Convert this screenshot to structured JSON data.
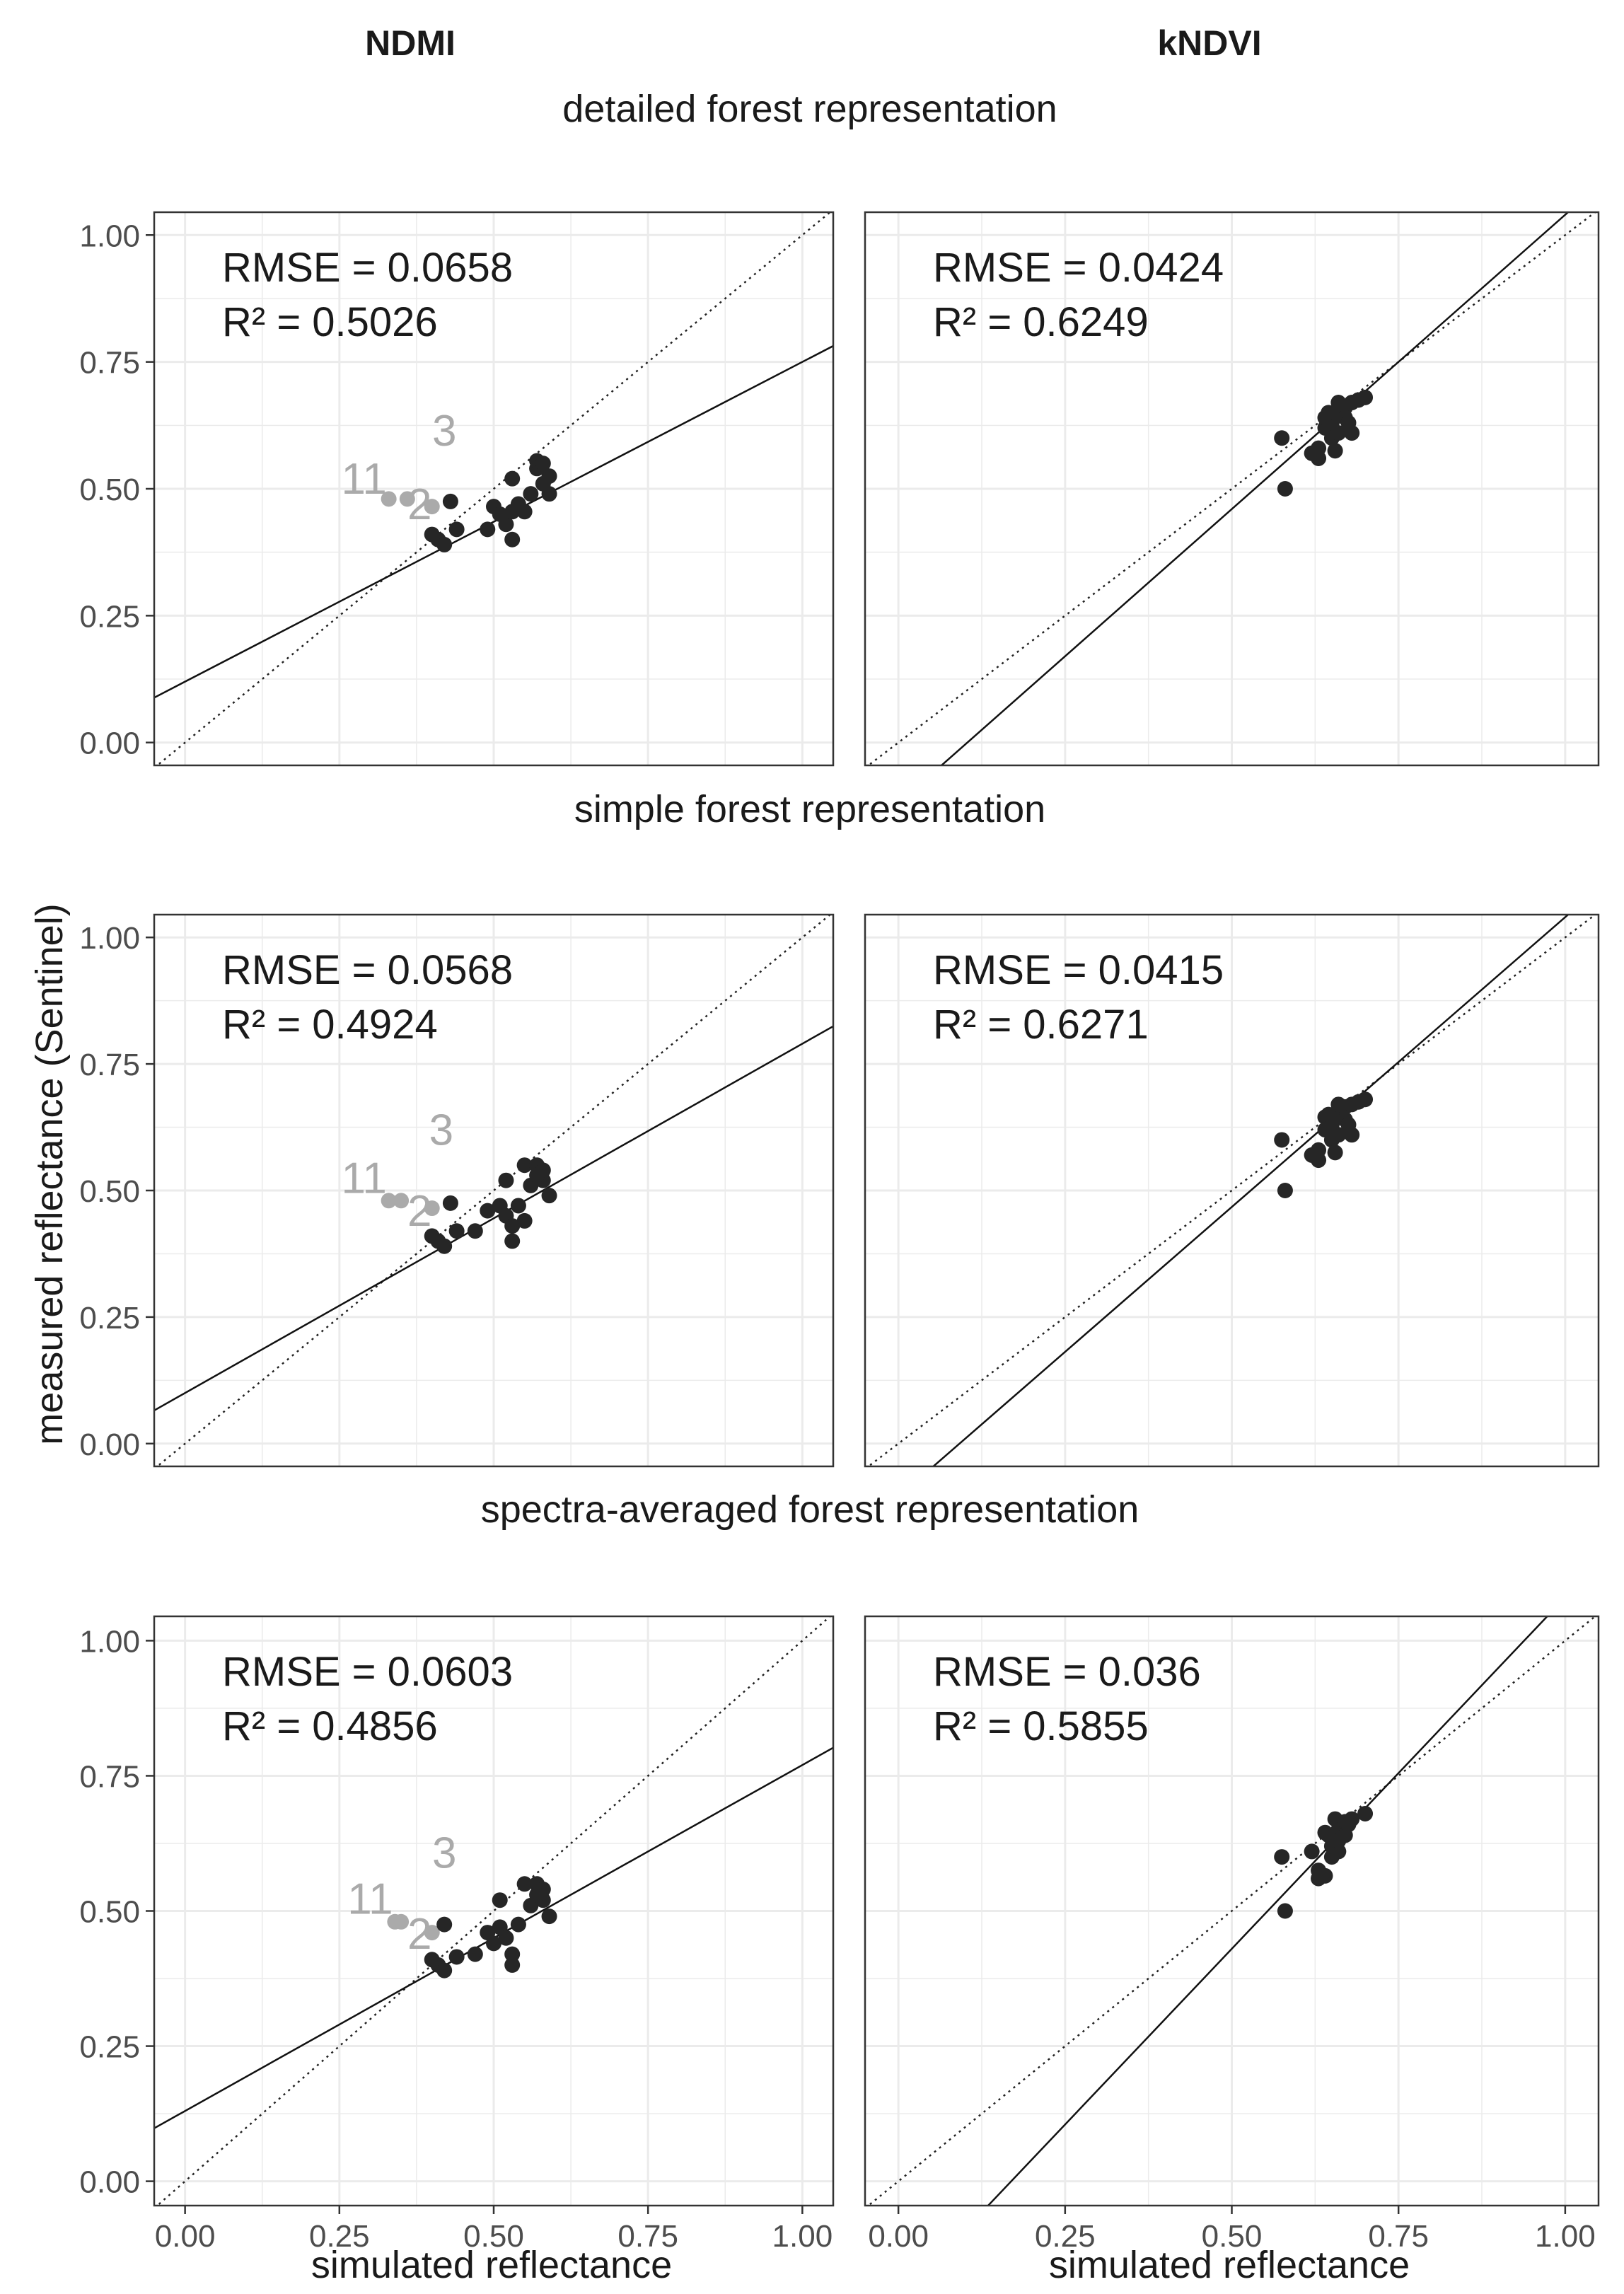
{
  "figure": {
    "column_headers": [
      "NDMI",
      "kNDVI"
    ],
    "row_titles": [
      "detailed forest representation",
      "simple forest representation",
      "spectra-averaged forest representation"
    ],
    "ylabel": "measured reflectance (Sentinel)",
    "xlabel": "simulated reflectance",
    "tick_labels": [
      "0.00",
      "0.25",
      "0.50",
      "0.75",
      "1.00"
    ],
    "colors": {
      "points": "#262626",
      "outliers": "#aaaaaa",
      "grid": "#ebebeb",
      "frame": "#333333",
      "text": "#1a1a1a",
      "tick_text": "#4d4d4d"
    }
  },
  "chart_data": [
    {
      "type": "scatter",
      "title": "NDMI — detailed forest representation",
      "xlim": [
        -0.05,
        1.05
      ],
      "ylim": [
        -0.045,
        1.045
      ],
      "stats": {
        "rmse_label": "RMSE =  0.0658",
        "r2_label": "R² =  0.5026"
      },
      "fit": {
        "intercept": 0.12,
        "slope": 0.63
      },
      "outlier_labels": [
        {
          "text": "11",
          "x": 0.29,
          "y": 0.49
        },
        {
          "text": "3",
          "x": 0.42,
          "y": 0.585
        },
        {
          "text": "2",
          "x": 0.38,
          "y": 0.44
        }
      ],
      "outliers": [
        [
          0.33,
          0.48
        ],
        [
          0.36,
          0.48
        ],
        [
          0.4,
          0.465
        ]
      ],
      "points": [
        [
          0.4,
          0.41
        ],
        [
          0.41,
          0.4
        ],
        [
          0.42,
          0.39
        ],
        [
          0.43,
          0.475
        ],
        [
          0.44,
          0.42
        ],
        [
          0.49,
          0.42
        ],
        [
          0.5,
          0.465
        ],
        [
          0.51,
          0.45
        ],
        [
          0.52,
          0.43
        ],
        [
          0.53,
          0.4
        ],
        [
          0.53,
          0.455
        ],
        [
          0.53,
          0.52
        ],
        [
          0.54,
          0.47
        ],
        [
          0.55,
          0.455
        ],
        [
          0.56,
          0.49
        ],
        [
          0.57,
          0.54
        ],
        [
          0.57,
          0.555
        ],
        [
          0.58,
          0.51
        ],
        [
          0.58,
          0.55
        ],
        [
          0.59,
          0.525
        ],
        [
          0.59,
          0.49
        ]
      ]
    },
    {
      "type": "scatter",
      "title": "kNDVI — detailed forest representation",
      "xlim": [
        -0.05,
        1.05
      ],
      "ylim": [
        -0.045,
        1.045
      ],
      "stats": {
        "rmse_label": "RMSE =  0.0424",
        "r2_label": "R² =  0.6249"
      },
      "fit": {
        "intercept": -0.12,
        "slope": 1.16
      },
      "outlier_labels": [],
      "outliers": [],
      "points": [
        [
          0.575,
          0.6
        ],
        [
          0.58,
          0.5
        ],
        [
          0.62,
          0.57
        ],
        [
          0.63,
          0.56
        ],
        [
          0.63,
          0.58
        ],
        [
          0.64,
          0.62
        ],
        [
          0.64,
          0.64
        ],
        [
          0.65,
          0.6
        ],
        [
          0.65,
          0.63
        ],
        [
          0.655,
          0.575
        ],
        [
          0.66,
          0.65
        ],
        [
          0.66,
          0.61
        ],
        [
          0.67,
          0.66
        ],
        [
          0.67,
          0.64
        ],
        [
          0.68,
          0.67
        ],
        [
          0.68,
          0.61
        ],
        [
          0.69,
          0.675
        ],
        [
          0.7,
          0.68
        ],
        [
          0.66,
          0.67
        ],
        [
          0.645,
          0.65
        ],
        [
          0.675,
          0.63
        ]
      ]
    },
    {
      "type": "scatter",
      "title": "NDMI — simple forest representation",
      "xlim": [
        -0.05,
        1.05
      ],
      "ylim": [
        -0.045,
        1.045
      ],
      "stats": {
        "rmse_label": "RMSE =  0.0568",
        "r2_label": "R² =  0.4924"
      },
      "fit": {
        "intercept": 0.1,
        "slope": 0.69
      },
      "outlier_labels": [
        {
          "text": "11",
          "x": 0.29,
          "y": 0.495
        },
        {
          "text": "3",
          "x": 0.415,
          "y": 0.59
        },
        {
          "text": "2",
          "x": 0.38,
          "y": 0.43
        }
      ],
      "outliers": [
        [
          0.33,
          0.48
        ],
        [
          0.35,
          0.48
        ],
        [
          0.4,
          0.465
        ]
      ],
      "points": [
        [
          0.4,
          0.41
        ],
        [
          0.41,
          0.4
        ],
        [
          0.42,
          0.39
        ],
        [
          0.43,
          0.475
        ],
        [
          0.44,
          0.42
        ],
        [
          0.47,
          0.42
        ],
        [
          0.49,
          0.46
        ],
        [
          0.51,
          0.47
        ],
        [
          0.52,
          0.45
        ],
        [
          0.53,
          0.4
        ],
        [
          0.53,
          0.43
        ],
        [
          0.52,
          0.52
        ],
        [
          0.54,
          0.47
        ],
        [
          0.55,
          0.55
        ],
        [
          0.56,
          0.51
        ],
        [
          0.57,
          0.55
        ],
        [
          0.58,
          0.52
        ],
        [
          0.58,
          0.54
        ],
        [
          0.59,
          0.49
        ],
        [
          0.57,
          0.53
        ],
        [
          0.55,
          0.44
        ]
      ]
    },
    {
      "type": "scatter",
      "title": "kNDVI — simple forest representation",
      "xlim": [
        -0.05,
        1.05
      ],
      "ylim": [
        -0.045,
        1.045
      ],
      "stats": {
        "rmse_label": "RMSE =  0.0415",
        "r2_label": "R² =  0.6271"
      },
      "fit": {
        "intercept": -0.105,
        "slope": 1.145
      },
      "outlier_labels": [],
      "outliers": [],
      "points": [
        [
          0.575,
          0.6
        ],
        [
          0.58,
          0.5
        ],
        [
          0.62,
          0.57
        ],
        [
          0.63,
          0.56
        ],
        [
          0.63,
          0.58
        ],
        [
          0.64,
          0.62
        ],
        [
          0.64,
          0.645
        ],
        [
          0.65,
          0.6
        ],
        [
          0.65,
          0.63
        ],
        [
          0.655,
          0.575
        ],
        [
          0.66,
          0.65
        ],
        [
          0.66,
          0.61
        ],
        [
          0.67,
          0.665
        ],
        [
          0.67,
          0.64
        ],
        [
          0.68,
          0.67
        ],
        [
          0.68,
          0.61
        ],
        [
          0.69,
          0.675
        ],
        [
          0.7,
          0.68
        ],
        [
          0.66,
          0.67
        ],
        [
          0.645,
          0.65
        ],
        [
          0.675,
          0.63
        ]
      ]
    },
    {
      "type": "scatter",
      "title": "NDMI — spectra-averaged forest representation",
      "xlim": [
        -0.05,
        1.05
      ],
      "ylim": [
        -0.045,
        1.045
      ],
      "stats": {
        "rmse_label": "RMSE =  0.0603",
        "r2_label": "R² =  0.4856"
      },
      "fit": {
        "intercept": 0.13,
        "slope": 0.64
      },
      "outlier_labels": [
        {
          "text": "11",
          "x": 0.3,
          "y": 0.495
        },
        {
          "text": "3",
          "x": 0.42,
          "y": 0.58
        },
        {
          "text": "2",
          "x": 0.38,
          "y": 0.43
        }
      ],
      "outliers": [
        [
          0.34,
          0.48
        ],
        [
          0.35,
          0.48
        ],
        [
          0.4,
          0.46
        ]
      ],
      "points": [
        [
          0.4,
          0.41
        ],
        [
          0.41,
          0.4
        ],
        [
          0.42,
          0.39
        ],
        [
          0.42,
          0.475
        ],
        [
          0.44,
          0.415
        ],
        [
          0.47,
          0.42
        ],
        [
          0.49,
          0.46
        ],
        [
          0.5,
          0.44
        ],
        [
          0.51,
          0.47
        ],
        [
          0.52,
          0.45
        ],
        [
          0.51,
          0.52
        ],
        [
          0.53,
          0.4
        ],
        [
          0.53,
          0.42
        ],
        [
          0.54,
          0.475
        ],
        [
          0.55,
          0.55
        ],
        [
          0.56,
          0.51
        ],
        [
          0.57,
          0.55
        ],
        [
          0.58,
          0.52
        ],
        [
          0.58,
          0.54
        ],
        [
          0.59,
          0.49
        ],
        [
          0.57,
          0.53
        ]
      ]
    },
    {
      "type": "scatter",
      "title": "kNDVI — spectra-averaged forest representation",
      "xlim": [
        -0.05,
        1.05
      ],
      "ylim": [
        -0.045,
        1.045
      ],
      "stats": {
        "rmse_label": "RMSE =  0.036",
        "r2_label": "R² =  0.5855"
      },
      "fit": {
        "intercept": -0.22,
        "slope": 1.3
      },
      "outlier_labels": [],
      "outliers": [],
      "points": [
        [
          0.575,
          0.6
        ],
        [
          0.58,
          0.5
        ],
        [
          0.62,
          0.61
        ],
        [
          0.63,
          0.56
        ],
        [
          0.63,
          0.575
        ],
        [
          0.64,
          0.565
        ],
        [
          0.64,
          0.645
        ],
        [
          0.65,
          0.6
        ],
        [
          0.65,
          0.62
        ],
        [
          0.655,
          0.67
        ],
        [
          0.66,
          0.65
        ],
        [
          0.66,
          0.61
        ],
        [
          0.67,
          0.665
        ],
        [
          0.67,
          0.64
        ],
        [
          0.68,
          0.67
        ],
        [
          0.7,
          0.68
        ],
        [
          0.66,
          0.63
        ],
        [
          0.645,
          0.64
        ],
        [
          0.675,
          0.66
        ]
      ]
    }
  ]
}
